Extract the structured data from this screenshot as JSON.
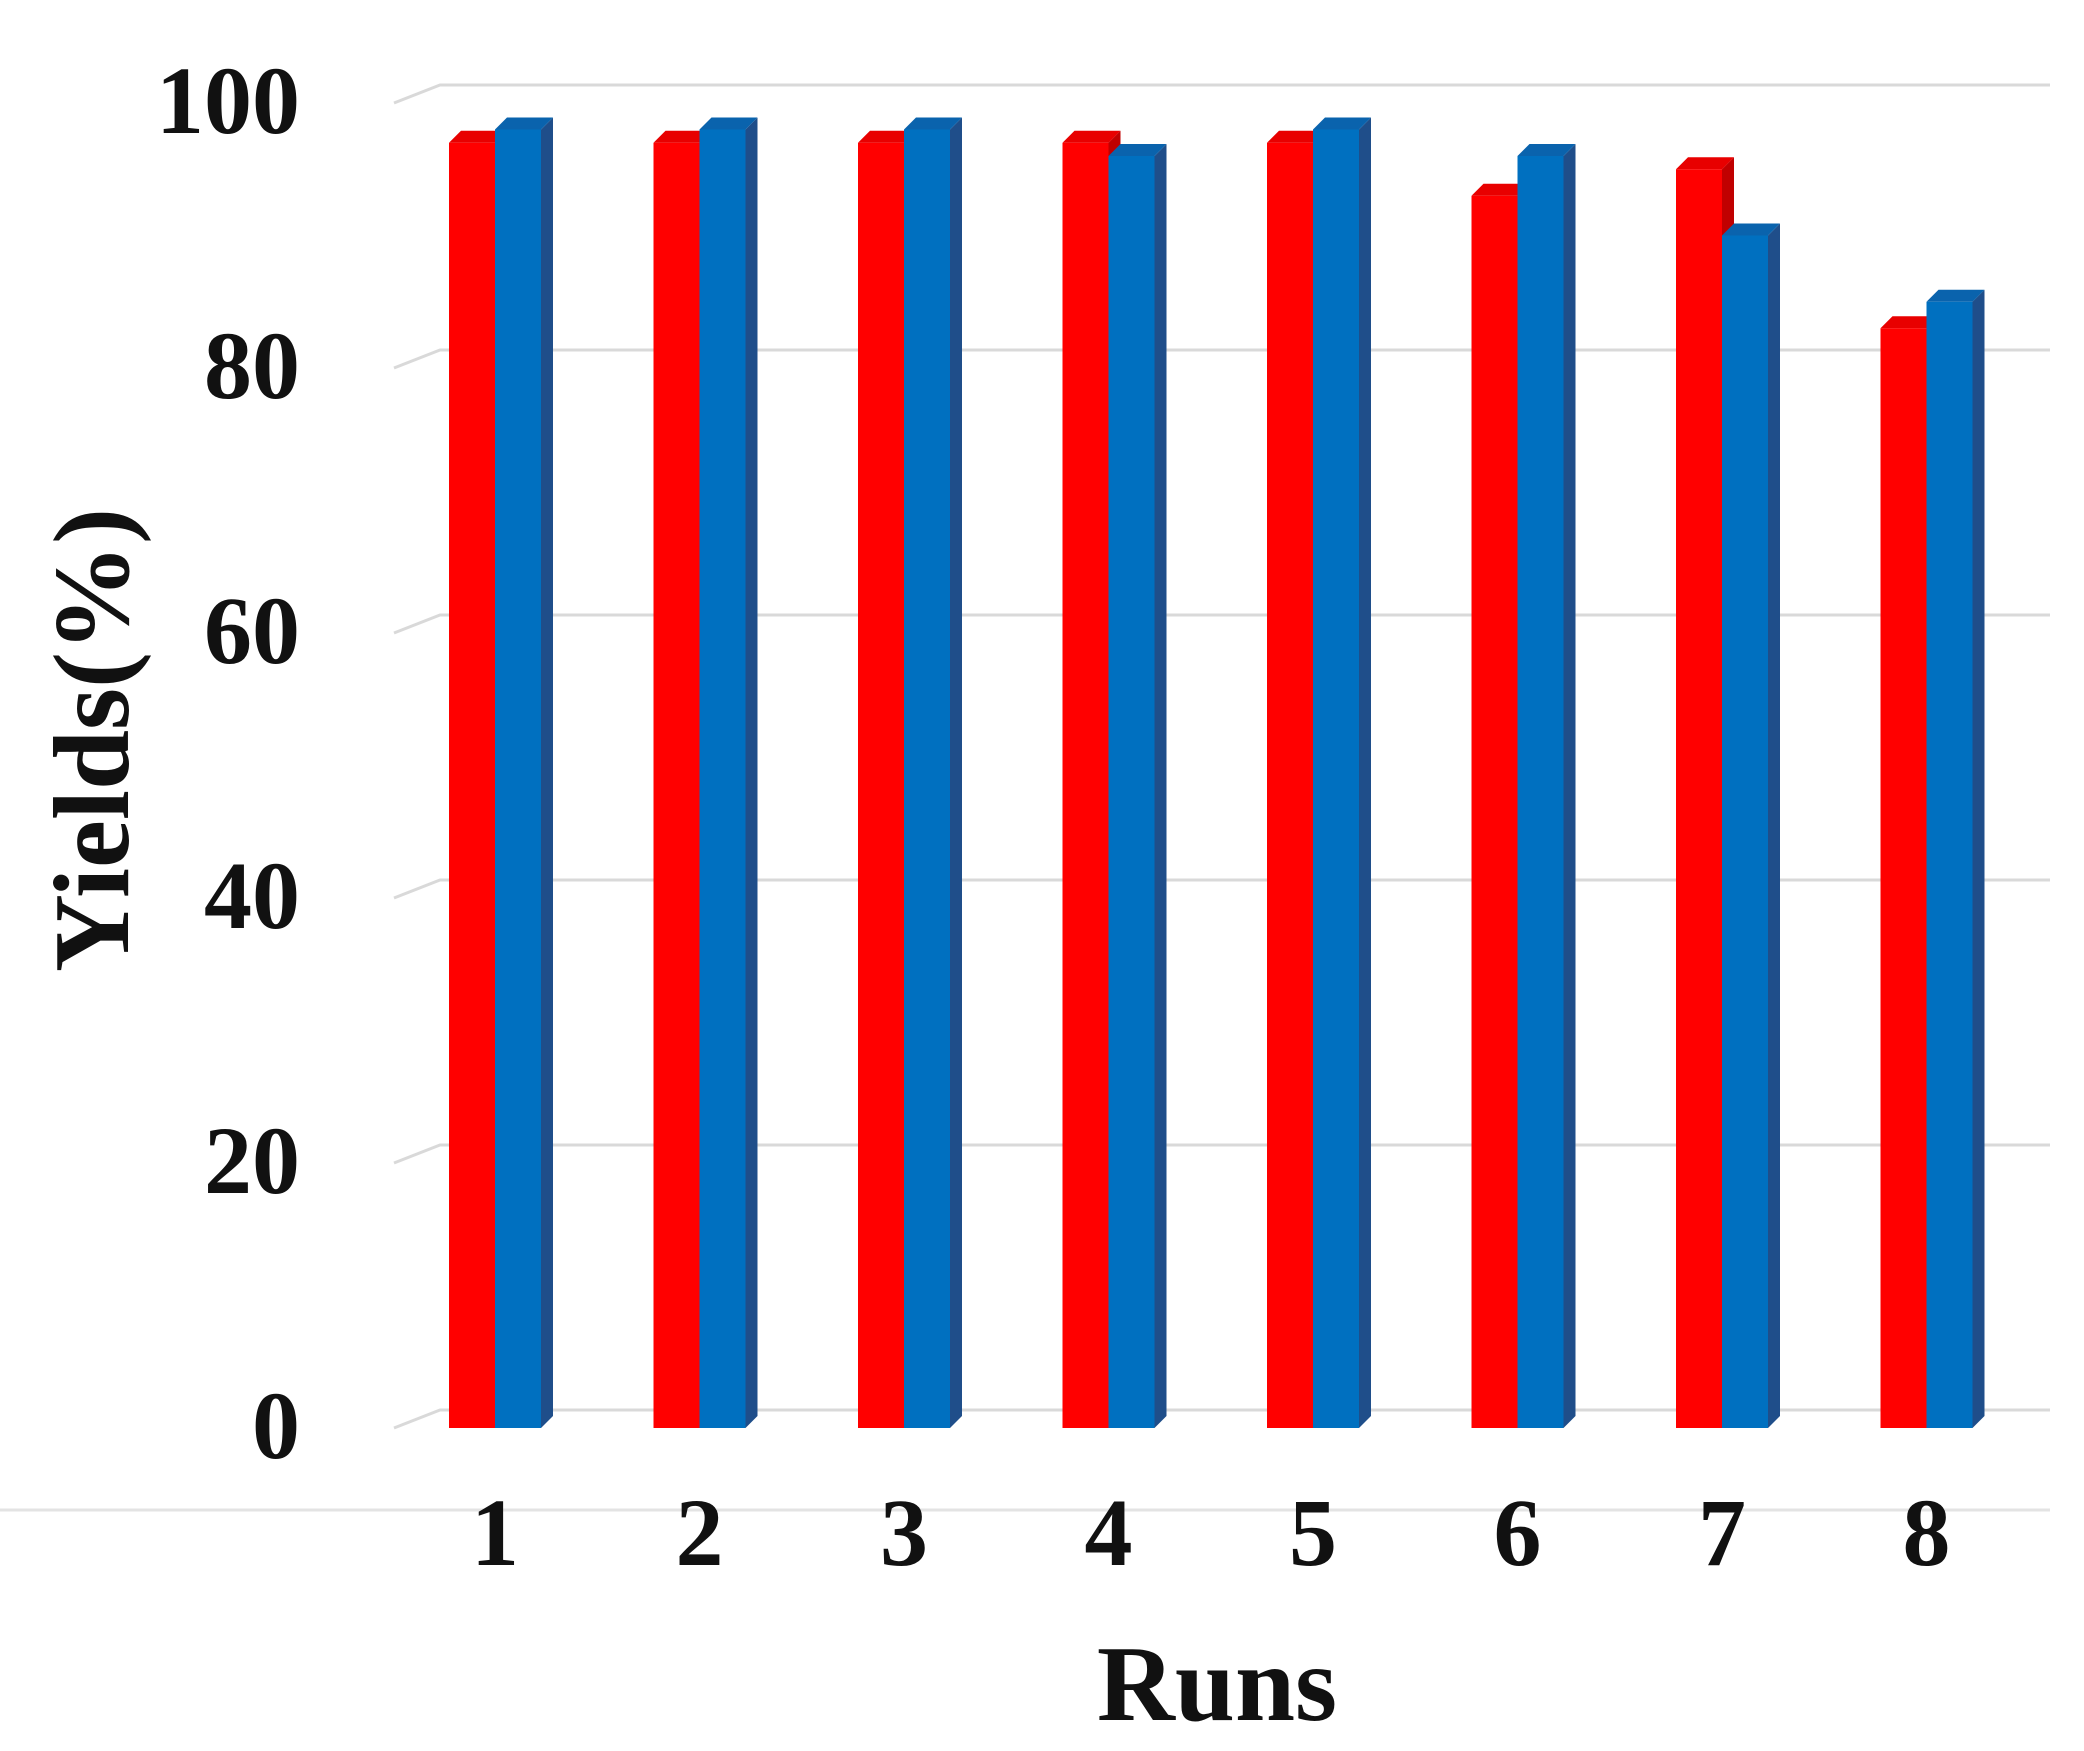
{
  "chart_data": {
    "type": "bar",
    "style": "3d-clustered-column",
    "categories": [
      "1",
      "2",
      "3",
      "4",
      "5",
      "6",
      "7",
      "8"
    ],
    "series": [
      {
        "color": "#ff0000",
        "side_color": "#c00000",
        "top_color": "#e80000",
        "values": [
          97,
          97,
          97,
          97,
          97,
          93,
          95,
          83
        ]
      },
      {
        "color": "#0070c0",
        "side_color": "#1f4e8a",
        "top_color": "#0a63ad",
        "values": [
          98,
          98,
          98,
          96,
          98,
          96,
          90,
          85
        ]
      }
    ],
    "xlabel": "Runs",
    "ylabel": "Yields(%)",
    "ylim": [
      0,
      100
    ],
    "yticks": [
      "0",
      "20",
      "40",
      "60",
      "80",
      "100"
    ],
    "grid": true,
    "legend": "none"
  }
}
